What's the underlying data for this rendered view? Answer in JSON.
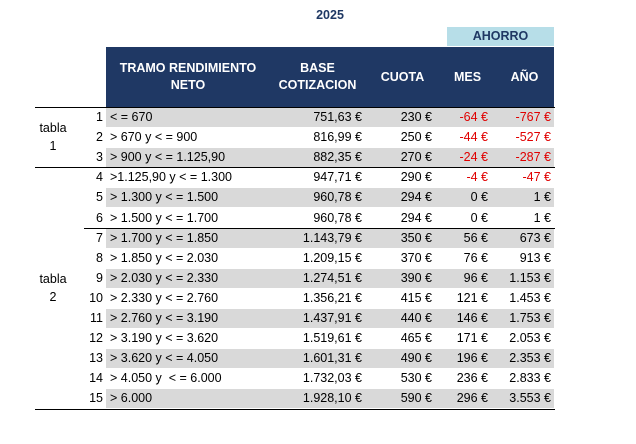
{
  "title": "2025",
  "header": {
    "group": "AHORRO",
    "columns": [
      "TRAMO RENDIMIENTO NETO",
      "BASE COTIZACION",
      "CUOTA",
      "MES",
      "AÑO"
    ]
  },
  "groups": [
    {
      "label": "tabla 1",
      "rows": [
        [
          "1",
          "< = 670",
          "751,63 €",
          "230 €",
          "-64 €",
          "-767 €"
        ],
        [
          "2",
          "> 670 y < = 900",
          "816,99 €",
          "250 €",
          "-44 €",
          "-527 €"
        ],
        [
          "3",
          "> 900 y < = 1.125,90",
          "882,35 €",
          "270 €",
          "-24 €",
          "-287 €"
        ]
      ]
    },
    {
      "label": "tabla 2",
      "rows": [
        [
          "4",
          ">1.125,90 y < = 1.300",
          "947,71 €",
          "290 €",
          "-4 €",
          "-47 €"
        ],
        [
          "5",
          "> 1.300 y < = 1.500",
          "960,78 €",
          "294 €",
          "0 €",
          "1 €"
        ],
        [
          "6",
          "> 1.500 y < = 1.700",
          "960,78 €",
          "294 €",
          "0 €",
          "1 €"
        ],
        [
          "7",
          "> 1.700 y < = 1.850",
          "1.143,79 €",
          "350 €",
          "56 €",
          "673 €"
        ],
        [
          "8",
          "> 1.850 y < = 2.030",
          "1.209,15 €",
          "370 €",
          "76 €",
          "913 €"
        ],
        [
          "9",
          "> 2.030 y < = 2.330",
          "1.274,51 €",
          "390 €",
          "96 €",
          "1.153 €"
        ],
        [
          "10",
          "> 2.330 y < = 2.760",
          "1.356,21 €",
          "415 €",
          "121 €",
          "1.453 €"
        ],
        [
          "11",
          "> 2.760 y < = 3.190",
          "1.437,91 €",
          "440 €",
          "146 €",
          "1.753 €"
        ],
        [
          "12",
          "> 3.190 y < = 3.620",
          "1.519,61 €",
          "465 €",
          "171 €",
          "2.053 €"
        ],
        [
          "13",
          "> 3.620 y < = 4.050",
          "1.601,31 €",
          "490 €",
          "196 €",
          "2.353 €"
        ],
        [
          "14",
          "> 4.050 y  < = 6.000",
          "1.732,03 €",
          "530 €",
          "236 €",
          "2.833 €"
        ],
        [
          "15",
          "> 6.000",
          "1.928,10 €",
          "590 €",
          "296 €",
          "3.553 €"
        ]
      ]
    }
  ]
}
